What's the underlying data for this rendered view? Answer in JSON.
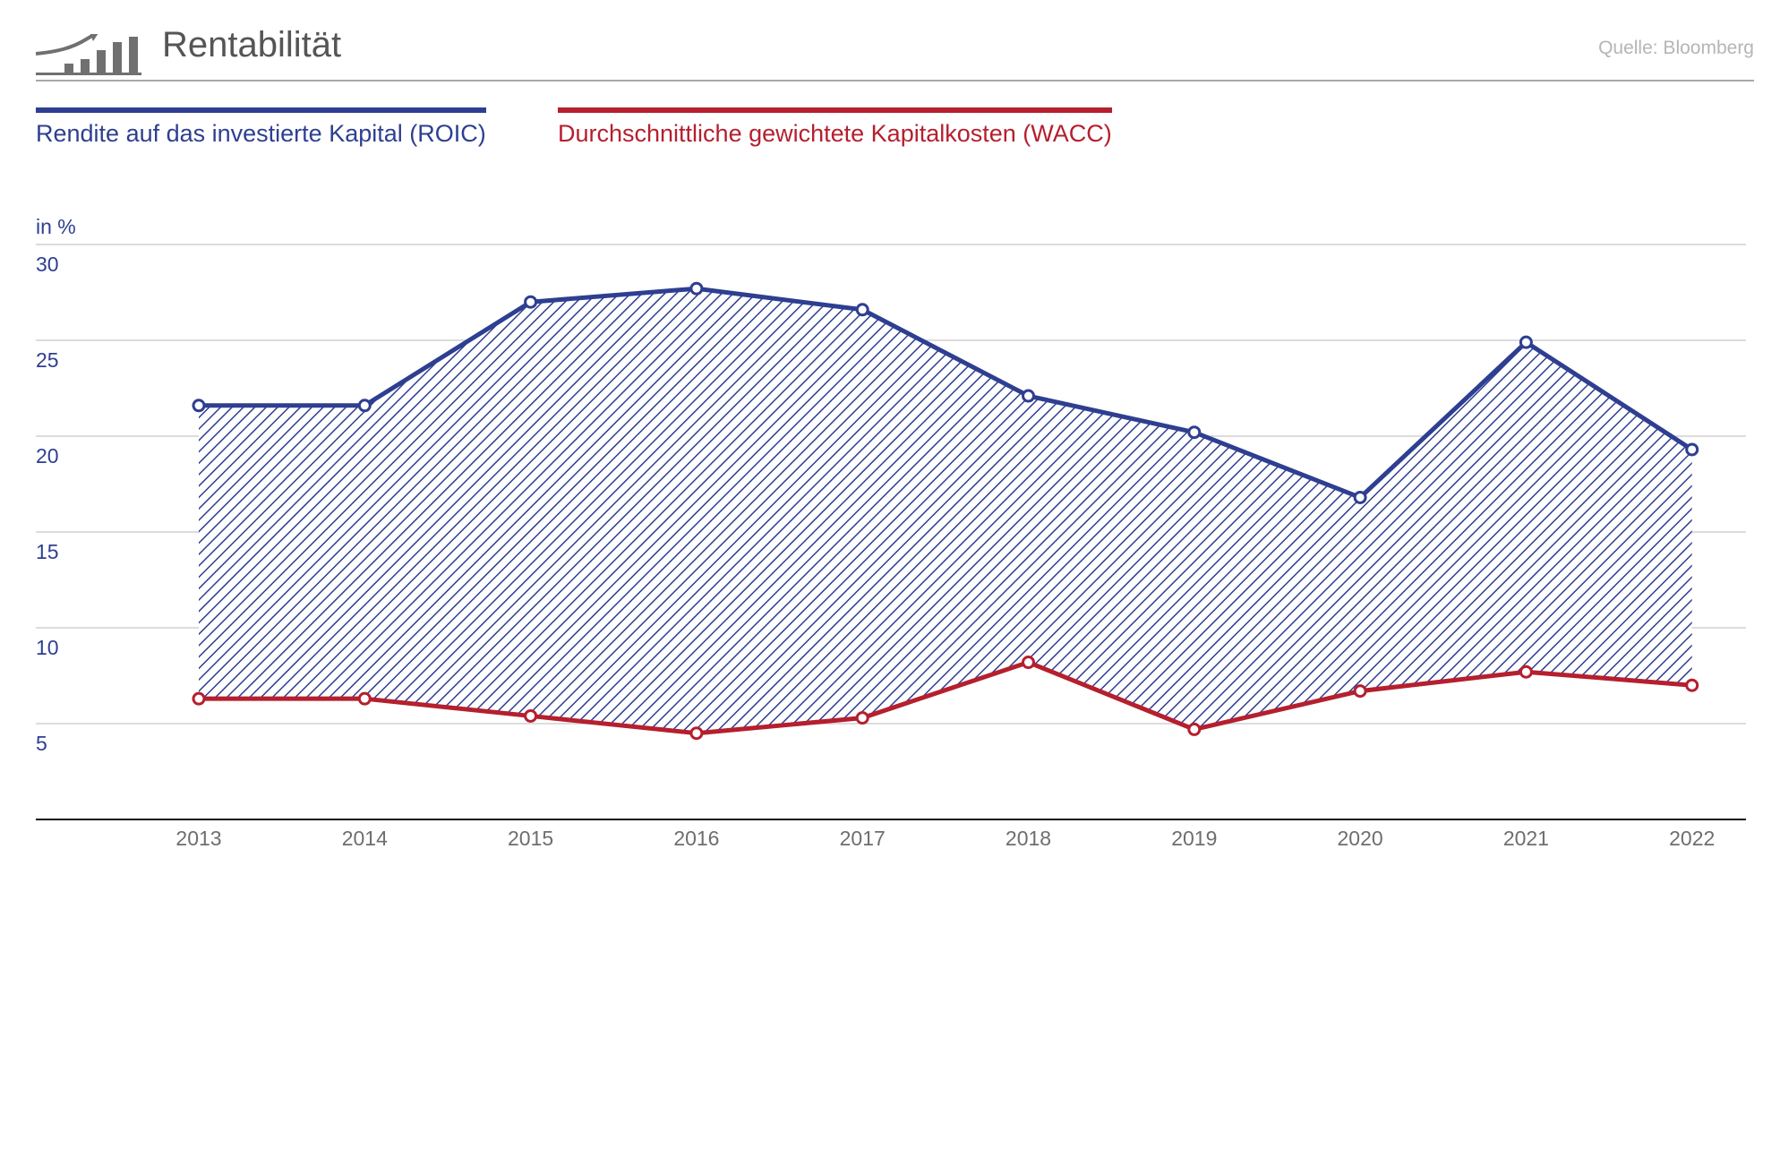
{
  "header": {
    "title": "Rentabilität",
    "source": "Quelle: Bloomberg",
    "logo_icon": "rising-bar-chart-icon"
  },
  "colors": {
    "roic": "#2e3f91",
    "wacc": "#b51f2e",
    "axis_tick": "#6e6e6e",
    "grid": "#d0d0d0"
  },
  "legend": {
    "roic_label": "Rendite auf das investierte Kapital (ROIC)",
    "wacc_label": "Durchschnittliche gewichtete Kapitalkosten (WACC)"
  },
  "chart_data": {
    "type": "line",
    "title": "Rentabilität",
    "ylabel": "in %",
    "xlabel": "",
    "ylim": [
      0,
      30
    ],
    "yticks": [
      5,
      10,
      15,
      20,
      25,
      30
    ],
    "grid": true,
    "legend_position": "top-left",
    "categories": [
      "2013",
      "2014",
      "2015",
      "2016",
      "2017",
      "2018",
      "2019",
      "2020",
      "2021",
      "2022"
    ],
    "series": [
      {
        "name": "Rendite auf das investierte Kapital (ROIC)",
        "values": [
          21.6,
          21.6,
          27.0,
          27.7,
          26.6,
          22.1,
          20.2,
          16.8,
          24.9,
          19.3
        ]
      },
      {
        "name": "Durchschnittliche gewichtete Kapitalkosten (WACC)",
        "values": [
          6.3,
          6.3,
          5.4,
          4.5,
          5.3,
          8.2,
          4.7,
          6.7,
          7.7,
          7.0
        ]
      }
    ],
    "fill_between": "hatched area between ROIC and WACC"
  }
}
